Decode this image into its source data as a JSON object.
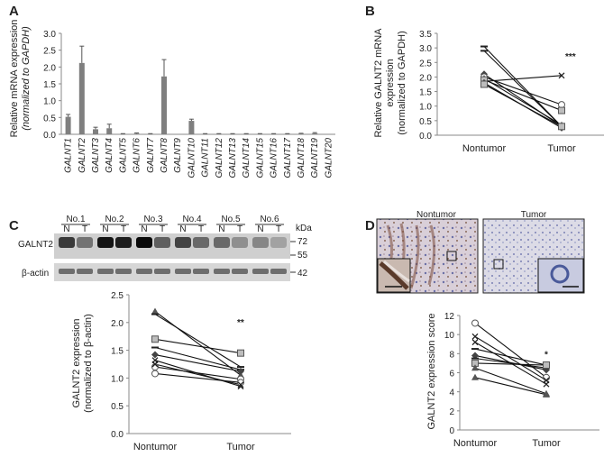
{
  "panels": [
    "A",
    "B",
    "C",
    "D"
  ],
  "colors": {
    "bar": "#7f7f7f",
    "line": "#111111",
    "axis": "#888888",
    "text": "#222222"
  },
  "chart_data": [
    {
      "panel": "A",
      "type": "bar",
      "ylabel_line1": "Relative mRNA expression",
      "ylabel_line2": "(normalized to GAPDH)",
      "ylim": [
        0,
        3.0
      ],
      "yticks": [
        "0.0",
        "0.5",
        "1.0",
        "1.5",
        "2.0",
        "2.5",
        "3.0"
      ],
      "categories": [
        "GALNT1",
        "GALNT2",
        "GALNT3",
        "GALNT4",
        "GALNT5",
        "GALNT6",
        "GALNT7",
        "GALNT8",
        "GALNT9",
        "GALNT10",
        "GALNT11",
        "GALNT12",
        "GALNT13",
        "GALNT14",
        "GALNT15",
        "GALNT16",
        "GALNT17",
        "GALNT18",
        "GALNT19",
        "GALNT20"
      ],
      "values": [
        0.52,
        2.12,
        0.15,
        0.18,
        0.01,
        0.02,
        0.01,
        1.72,
        0.0,
        0.4,
        0.01,
        0.01,
        0.01,
        0.01,
        0.01,
        0.01,
        0.01,
        0.02,
        0.03,
        0.0
      ],
      "errors": [
        0.07,
        0.5,
        0.06,
        0.12,
        0.01,
        0.02,
        0.01,
        0.5,
        0.0,
        0.05,
        0.01,
        0.01,
        0.01,
        0.01,
        0.01,
        0.01,
        0.01,
        0.01,
        0.02,
        0.0
      ]
    },
    {
      "panel": "B",
      "type": "line",
      "ylabel_line1": "Relative GALNT2 mRNA",
      "ylabel_line2": "expression",
      "ylabel_line3": "(normalized to GAPDH)",
      "ylim": [
        0,
        3.5
      ],
      "yticks": [
        "0.0",
        "0.5",
        "1.0",
        "1.5",
        "2.0",
        "2.5",
        "3.0",
        "3.5"
      ],
      "categories": [
        "Nontumor",
        "Tumor"
      ],
      "significance": "***",
      "series": [
        {
          "marker": "dash",
          "values": [
            3.05,
            0.3
          ]
        },
        {
          "marker": "dash",
          "values": [
            2.9,
            0.3
          ]
        },
        {
          "marker": "x",
          "values": [
            1.85,
            2.05
          ]
        },
        {
          "marker": "diamond",
          "values": [
            2.1,
            0.3
          ]
        },
        {
          "marker": "circle",
          "values": [
            2.0,
            1.05
          ]
        },
        {
          "marker": "triangle",
          "values": [
            1.95,
            0.35
          ]
        },
        {
          "marker": "square",
          "values": [
            1.9,
            0.85
          ]
        },
        {
          "marker": "diamond",
          "values": [
            1.8,
            0.25
          ]
        },
        {
          "marker": "square",
          "values": [
            1.75,
            0.3
          ]
        }
      ]
    },
    {
      "panel": "C",
      "type": "line",
      "ylabel_line1": "GALNT2 expression",
      "ylabel_line2": "(normalized to β-actin)",
      "ylim": [
        0,
        2.5
      ],
      "yticks": [
        "0.0",
        "0.5",
        "1.0",
        "1.5",
        "2.0",
        "2.5"
      ],
      "categories": [
        "Nontumor",
        "Tumor"
      ],
      "significance": "**",
      "series": [
        {
          "marker": "triangle",
          "values": [
            2.2,
            1.05
          ]
        },
        {
          "marker": "dash",
          "values": [
            2.15,
            1.2
          ]
        },
        {
          "marker": "square",
          "values": [
            1.7,
            1.45
          ]
        },
        {
          "marker": "dash",
          "values": [
            1.55,
            1.15
          ]
        },
        {
          "marker": "diamond",
          "values": [
            1.42,
            1.12
          ]
        },
        {
          "marker": "x",
          "values": [
            1.32,
            0.85
          ]
        },
        {
          "marker": "circle",
          "values": [
            1.2,
            0.98
          ]
        },
        {
          "marker": "circle",
          "values": [
            1.08,
            0.92
          ]
        },
        {
          "marker": "x",
          "values": [
            1.25,
            0.88
          ]
        }
      ]
    },
    {
      "panel": "D",
      "type": "line",
      "ylabel_line1": "GALNT2 expression score",
      "ylim": [
        0,
        12
      ],
      "yticks": [
        "0",
        "2",
        "4",
        "6",
        "8",
        "10",
        "12"
      ],
      "categories": [
        "Nontumor",
        "Tumor"
      ],
      "significance": "*",
      "series": [
        {
          "marker": "circle",
          "values": [
            11.2,
            5.5
          ]
        },
        {
          "marker": "x",
          "values": [
            9.8,
            5.2
          ]
        },
        {
          "marker": "x",
          "values": [
            9.2,
            4.8
          ]
        },
        {
          "marker": "dash",
          "values": [
            8.5,
            6.8
          ]
        },
        {
          "marker": "diamond",
          "values": [
            7.8,
            6.3
          ]
        },
        {
          "marker": "dash",
          "values": [
            7.5,
            6.5
          ]
        },
        {
          "marker": "square",
          "values": [
            7.0,
            6.8
          ]
        },
        {
          "marker": "triangle",
          "values": [
            6.5,
            3.8
          ]
        },
        {
          "marker": "triangle",
          "values": [
            5.5,
            3.7
          ]
        }
      ]
    }
  ],
  "western": {
    "samples": [
      "No.1",
      "No.2",
      "No.3",
      "No.4",
      "No.5",
      "No.6"
    ],
    "lane_labels": [
      "N",
      "T"
    ],
    "kda_label": "kDa",
    "markers": [
      "72",
      "55",
      "42"
    ],
    "row_labels": [
      "GALNT2",
      "β-actin"
    ],
    "galnt2_intensity": [
      0.75,
      0.45,
      0.95,
      0.9,
      1.0,
      0.55,
      0.7,
      0.5,
      0.5,
      0.3,
      0.35,
      0.2
    ],
    "actin_intensity": [
      0.6,
      0.6,
      0.6,
      0.6,
      0.6,
      0.6,
      0.6,
      0.6,
      0.6,
      0.6,
      0.6,
      0.6
    ]
  },
  "ihc": {
    "labels": [
      "Nontumor",
      "Tumor"
    ]
  }
}
